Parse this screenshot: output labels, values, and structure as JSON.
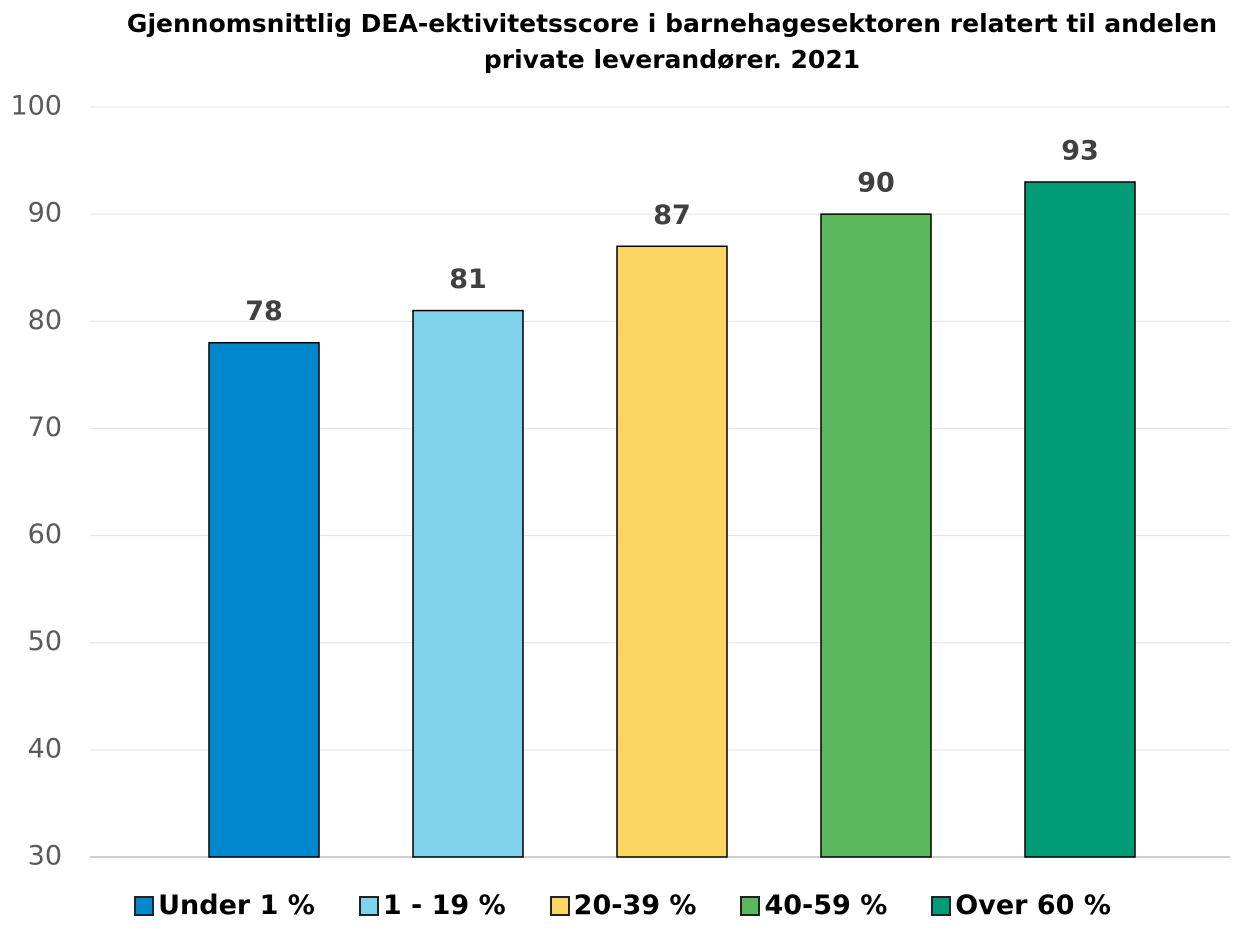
{
  "chart_data": {
    "type": "bar",
    "title": "Gjennomsnittlig DEA-ektivitetsscore i barnehagesektoren relatert til andelen private leverandører. 2021",
    "series": [
      {
        "name": "Under 1 %",
        "color": "#0088cc",
        "values": [
          78
        ]
      },
      {
        "name": "1 - 19 %",
        "color": "#7fd3ea",
        "values": [
          81
        ]
      },
      {
        "name": "20-39 %",
        "color": "#fdd562",
        "values": [
          87
        ]
      },
      {
        "name": "40-59 %",
        "color": "#5cb85c",
        "values": [
          90
        ]
      },
      {
        "name": "Over 60 %",
        "color": "#009b77",
        "values": [
          93
        ]
      }
    ],
    "ylim": [
      30,
      100
    ],
    "yticks": [
      30,
      40,
      50,
      60,
      70,
      80,
      90,
      100
    ],
    "grid": true,
    "legend": "bottom"
  }
}
